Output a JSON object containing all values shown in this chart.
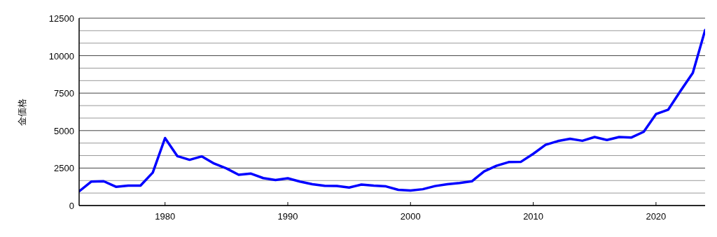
{
  "chart_data": {
    "type": "line",
    "ylabel": "金価格",
    "x": [
      1973,
      1974,
      1975,
      1976,
      1977,
      1978,
      1979,
      1980,
      1981,
      1982,
      1983,
      1984,
      1985,
      1986,
      1987,
      1988,
      1989,
      1990,
      1991,
      1992,
      1993,
      1994,
      1995,
      1996,
      1997,
      1998,
      1999,
      2000,
      2001,
      2002,
      2003,
      2004,
      2005,
      2006,
      2007,
      2008,
      2009,
      2010,
      2011,
      2012,
      2013,
      2014,
      2015,
      2016,
      2017,
      2018,
      2019,
      2020,
      2021,
      2022,
      2023,
      2024
    ],
    "series": [
      {
        "color": "#0000ff",
        "values": [
          950,
          1600,
          1620,
          1250,
          1330,
          1330,
          2200,
          4500,
          3300,
          3050,
          3280,
          2800,
          2480,
          2050,
          2130,
          1830,
          1700,
          1820,
          1600,
          1420,
          1320,
          1310,
          1200,
          1400,
          1330,
          1280,
          1050,
          1000,
          1090,
          1300,
          1420,
          1500,
          1620,
          2280,
          2650,
          2900,
          2920,
          3450,
          4050,
          4300,
          4450,
          4320,
          4570,
          4370,
          4570,
          4540,
          4920,
          6100,
          6400,
          7650,
          8850,
          11700
        ]
      }
    ],
    "xlim": [
      1973,
      2024
    ],
    "xticks": [
      1980,
      1990,
      2000,
      2010,
      2020
    ],
    "ylim": [
      0,
      12500
    ],
    "yticks": [
      0,
      2500,
      5000,
      7500,
      10000,
      12500
    ],
    "grid": "y",
    "marker": "none",
    "line_style": "solid"
  }
}
